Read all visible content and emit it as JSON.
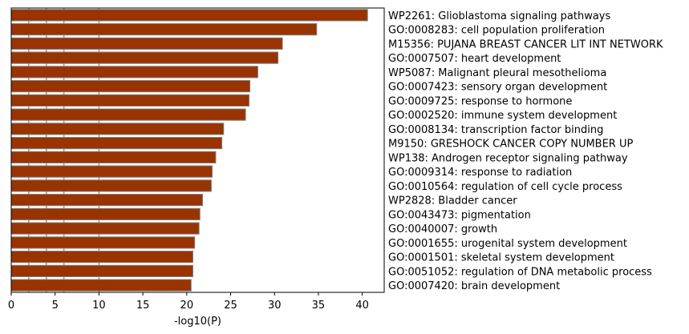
{
  "chart_data": {
    "type": "bar",
    "orientation": "horizontal",
    "title": "",
    "xlabel": "-log10(P)",
    "ylabel": "",
    "xlim": [
      0,
      42.5
    ],
    "xticks": [
      0,
      5,
      10,
      15,
      20,
      25,
      30,
      35,
      40
    ],
    "reference_lines_x": [
      2,
      4,
      6,
      10
    ],
    "category_label_position": "right",
    "grid": false,
    "categories": [
      "WP2261: Glioblastoma signaling pathways",
      "GO:0008283: cell population proliferation",
      "M15356: PUJANA BREAST CANCER LIT INT NETWORK",
      "GO:0007507: heart development",
      "WP5087: Malignant pleural mesothelioma",
      "GO:0007423: sensory organ development",
      "GO:0009725: response to hormone",
      "GO:0002520: immune system development",
      "GO:0008134: transcription factor binding",
      "M9150: GRESHOCK CANCER COPY NUMBER UP",
      "WP138: Androgen receptor signaling pathway",
      "GO:0009314: response to radiation",
      "GO:0010564: regulation of cell cycle process",
      "WP2828: Bladder cancer",
      "GO:0043473: pigmentation",
      "GO:0040007: growth",
      "GO:0001655: urogenital system development",
      "GO:0001501: skeletal system development",
      "GO:0051052: regulation of DNA metabolic process",
      "GO:0007420: brain development"
    ],
    "values": [
      40.6,
      34.8,
      30.9,
      30.4,
      28.1,
      27.2,
      27.1,
      26.7,
      24.2,
      24.0,
      23.3,
      22.9,
      22.8,
      21.8,
      21.5,
      21.4,
      20.9,
      20.7,
      20.7,
      20.5
    ],
    "colors": {
      "bar_fill": "#993300",
      "bar_edge": "#7f7f7f",
      "reference_line": "#9a9a9a",
      "axis": "#000000"
    }
  }
}
